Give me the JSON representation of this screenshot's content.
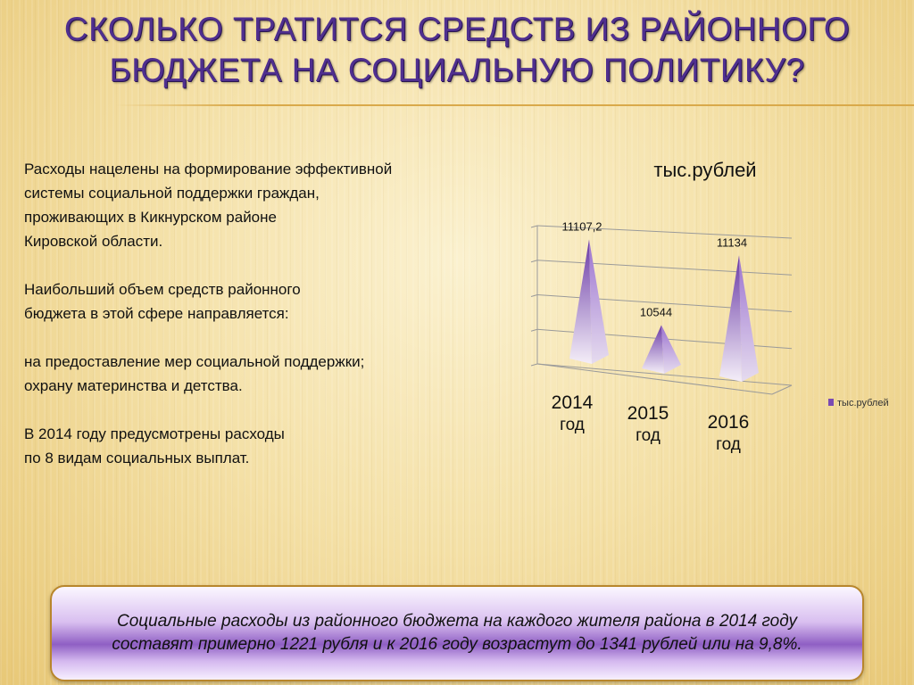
{
  "slide": {
    "title_lines": [
      "СКОЛЬКО ТРАТИТСЯ СРЕДСТВ ИЗ РАЙОННОГО",
      "БЮДЖЕТА НА СОЦИАЛЬНУЮ ПОЛИТИКУ?"
    ],
    "paragraphs": [
      "Расходы нацелены на формирование эффективной\nсистемы социальной поддержки граждан,\nпроживающих в Кикнурском районе\nКировской области.",
      "Наибольший объем средств районного\nбюджета в этой сфере направляется:",
      "на предоставление мер социальной поддержки;\nохрану материнства и детства.",
      "В 2014 году предусмотрены расходы\nпо  8 видам  социальных выплат."
    ],
    "callout_lines": [
      "Социальные расходы из районного бюджета на каждого жителя района в 2014 году",
      "составят примерно 1221  рубля и к 2016 году возрастут до 1341 рублей или на 9,8%."
    ]
  },
  "chart_data": {
    "type": "bar",
    "style": "3d-pyramid",
    "title": "тыс.рублей",
    "categories": [
      "2014 год",
      "2015 год",
      "2016 год"
    ],
    "category_lines": [
      [
        "2014",
        "год"
      ],
      [
        "2015",
        "год"
      ],
      [
        "2016",
        "год"
      ]
    ],
    "series": [
      {
        "name": "тыс.рублей",
        "values": [
          11107.2,
          10544,
          11134
        ]
      }
    ],
    "data_labels": [
      "11107,2",
      "10544",
      "11134"
    ],
    "legend_position": "right",
    "grid": true,
    "colors": {
      "pyramid_dark": "#6a3aa6",
      "pyramid_light": "#f4eef8",
      "legend_marker": "#7a4ab3"
    }
  }
}
